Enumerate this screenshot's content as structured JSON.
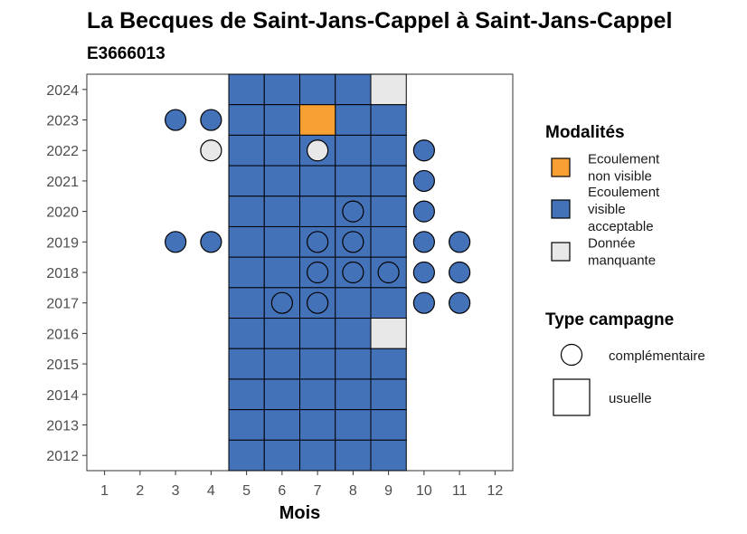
{
  "chart_data": {
    "type": "heatmap",
    "title": "La Becques de Saint-Jans-Cappel à Saint-Jans-Cappel",
    "subtitle": "E3666013",
    "xlabel": "Mois",
    "ylabel": "",
    "x_ticks": [
      "1",
      "2",
      "3",
      "4",
      "5",
      "6",
      "7",
      "8",
      "9",
      "10",
      "11",
      "12"
    ],
    "y_ticks": [
      "2012",
      "2013",
      "2014",
      "2015",
      "2016",
      "2017",
      "2018",
      "2019",
      "2020",
      "2021",
      "2022",
      "2023",
      "2024"
    ],
    "xlim": [
      0.5,
      12.5
    ],
    "ylim": [
      2011.5,
      2024.5
    ],
    "grid": false,
    "colors": {
      "Ecoulement non visible": "#F8A033",
      "Ecoulement visible acceptable": "#4472B8",
      "Donnée manquante": "#E8E8E8"
    },
    "legend": {
      "placement": "right",
      "modalites_title": "Modalités",
      "modalites": [
        {
          "key": "Ecoulement non visible",
          "lines": [
            "Ecoulement",
            "non visible"
          ]
        },
        {
          "key": "Ecoulement visible acceptable",
          "lines": [
            "Ecoulement",
            "visible",
            "acceptable"
          ]
        },
        {
          "key": "Donnée manquante",
          "lines": [
            "Donnée",
            "manquante"
          ]
        }
      ],
      "campagne_title": "Type campagne",
      "campagnes": [
        {
          "shape": "circle",
          "label": "complémentaire"
        },
        {
          "shape": "square",
          "label": "usuelle"
        }
      ]
    },
    "usuelle": [
      {
        "year": 2024,
        "months": [
          5,
          6,
          7,
          8
        ],
        "value": "Ecoulement visible acceptable"
      },
      {
        "year": 2024,
        "months": [
          9
        ],
        "value": "Donnée manquante"
      },
      {
        "year": 2023,
        "months": [
          5,
          6,
          8,
          9
        ],
        "value": "Ecoulement visible acceptable"
      },
      {
        "year": 2023,
        "months": [
          7
        ],
        "value": "Ecoulement non visible"
      },
      {
        "year": 2022,
        "months": [
          5,
          6,
          7,
          8,
          9
        ],
        "value": "Ecoulement visible acceptable"
      },
      {
        "year": 2021,
        "months": [
          5,
          6,
          7,
          8,
          9
        ],
        "value": "Ecoulement visible acceptable"
      },
      {
        "year": 2020,
        "months": [
          5,
          6,
          7,
          8,
          9
        ],
        "value": "Ecoulement visible acceptable"
      },
      {
        "year": 2019,
        "months": [
          5,
          6,
          7,
          8,
          9
        ],
        "value": "Ecoulement visible acceptable"
      },
      {
        "year": 2018,
        "months": [
          5,
          6,
          7,
          8,
          9
        ],
        "value": "Ecoulement visible acceptable"
      },
      {
        "year": 2017,
        "months": [
          5,
          6,
          7,
          8,
          9
        ],
        "value": "Ecoulement visible acceptable"
      },
      {
        "year": 2016,
        "months": [
          5,
          6,
          7,
          8
        ],
        "value": "Ecoulement visible acceptable"
      },
      {
        "year": 2016,
        "months": [
          9
        ],
        "value": "Donnée manquante"
      },
      {
        "year": 2015,
        "months": [
          5,
          6,
          7,
          8,
          9
        ],
        "value": "Ecoulement visible acceptable"
      },
      {
        "year": 2014,
        "months": [
          5,
          6,
          7,
          8,
          9
        ],
        "value": "Ecoulement visible acceptable"
      },
      {
        "year": 2013,
        "months": [
          5,
          6,
          7,
          8,
          9
        ],
        "value": "Ecoulement visible acceptable"
      },
      {
        "year": 2012,
        "months": [
          5,
          6,
          7,
          8,
          9
        ],
        "value": "Ecoulement visible acceptable"
      }
    ],
    "complementaire": [
      {
        "year": 2023,
        "month": 3,
        "value": "Ecoulement visible acceptable"
      },
      {
        "year": 2023,
        "month": 4,
        "value": "Ecoulement visible acceptable"
      },
      {
        "year": 2022,
        "month": 4,
        "value": "Donnée manquante"
      },
      {
        "year": 2022,
        "month": 7,
        "value": "Donnée manquante"
      },
      {
        "year": 2022,
        "month": 10,
        "value": "Ecoulement visible acceptable"
      },
      {
        "year": 2021,
        "month": 10,
        "value": "Ecoulement visible acceptable"
      },
      {
        "year": 2020,
        "month": 8,
        "value": "Ecoulement visible acceptable"
      },
      {
        "year": 2020,
        "month": 10,
        "value": "Ecoulement visible acceptable"
      },
      {
        "year": 2019,
        "month": 3,
        "value": "Ecoulement visible acceptable"
      },
      {
        "year": 2019,
        "month": 4,
        "value": "Ecoulement visible acceptable"
      },
      {
        "year": 2019,
        "month": 7,
        "value": "Ecoulement visible acceptable"
      },
      {
        "year": 2019,
        "month": 8,
        "value": "Ecoulement visible acceptable"
      },
      {
        "year": 2019,
        "month": 10,
        "value": "Ecoulement visible acceptable"
      },
      {
        "year": 2019,
        "month": 11,
        "value": "Ecoulement visible acceptable"
      },
      {
        "year": 2018,
        "month": 7,
        "value": "Ecoulement visible acceptable"
      },
      {
        "year": 2018,
        "month": 8,
        "value": "Ecoulement visible acceptable"
      },
      {
        "year": 2018,
        "month": 9,
        "value": "Ecoulement visible acceptable"
      },
      {
        "year": 2018,
        "month": 10,
        "value": "Ecoulement visible acceptable"
      },
      {
        "year": 2018,
        "month": 11,
        "value": "Ecoulement visible acceptable"
      },
      {
        "year": 2017,
        "month": 6,
        "value": "Ecoulement visible acceptable"
      },
      {
        "year": 2017,
        "month": 7,
        "value": "Ecoulement visible acceptable"
      },
      {
        "year": 2017,
        "month": 10,
        "value": "Ecoulement visible acceptable"
      },
      {
        "year": 2017,
        "month": 11,
        "value": "Ecoulement visible acceptable"
      }
    ]
  }
}
